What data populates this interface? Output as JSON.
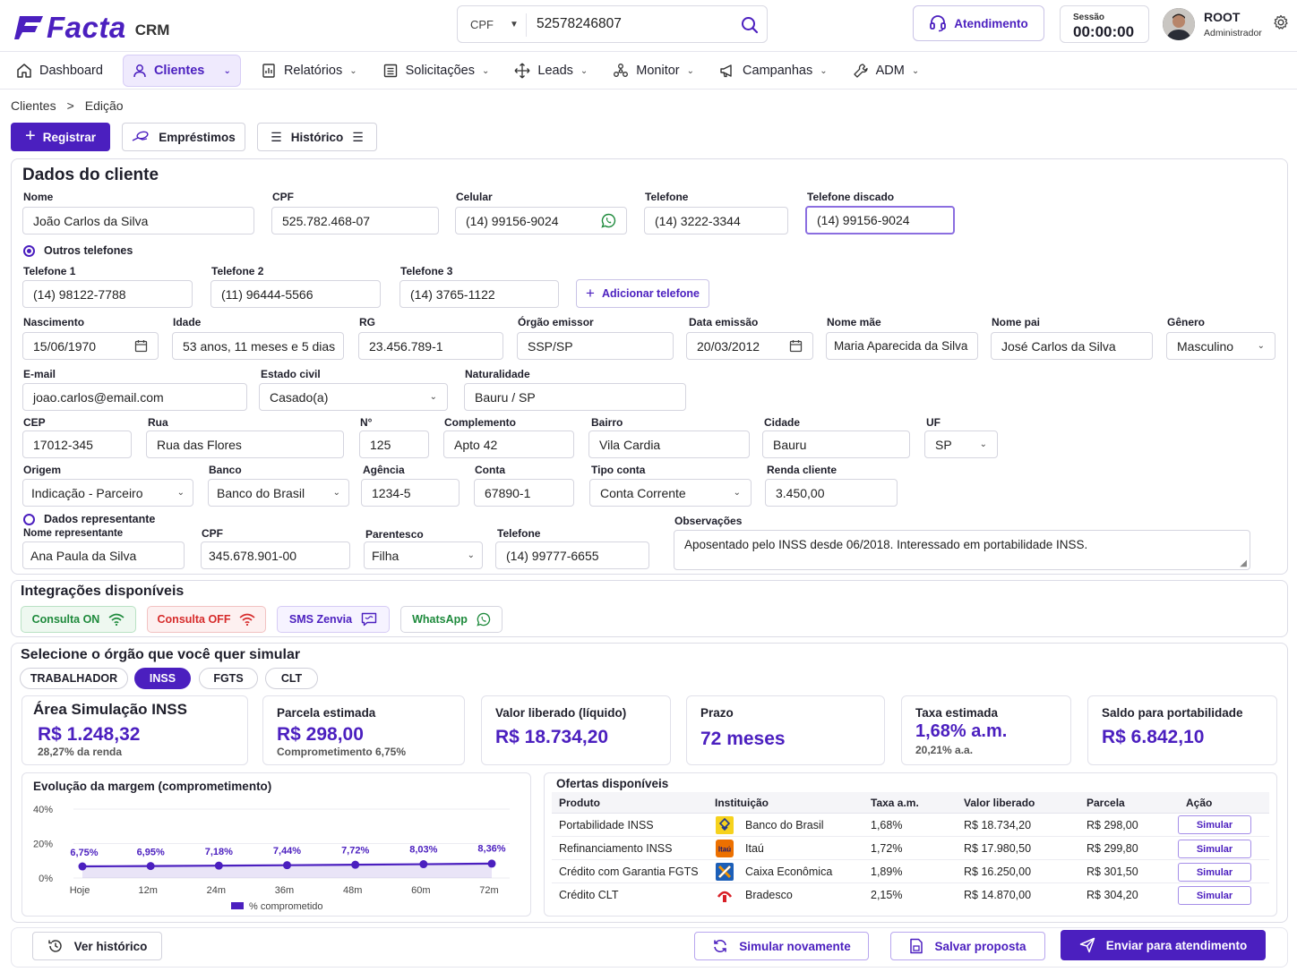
{
  "app": {
    "logo": "Facta",
    "product": "CRM"
  },
  "search": {
    "type": "CPF",
    "value": "52578246807"
  },
  "header": {
    "support_label": "Atendimento",
    "session_label": "Sessão",
    "session_time": "00:00:00",
    "user_name": "ROOT",
    "user_role": "Administrador"
  },
  "nav": [
    {
      "label": "Dashboard"
    },
    {
      "label": "Clientes"
    },
    {
      "label": "Relatórios"
    },
    {
      "label": "Solicitações"
    },
    {
      "label": "Leads"
    },
    {
      "label": "Monitor"
    },
    {
      "label": "Campanhas"
    },
    {
      "label": "ADM"
    }
  ],
  "breadcrumb": {
    "root": "Clientes",
    "sep": ">",
    "current": "Edição"
  },
  "actions": {
    "register": "Registrar",
    "loans": "Empréstimos",
    "history": "Histórico"
  },
  "client": {
    "title": "Dados do cliente",
    "labels": {
      "name": "Nome",
      "cpf": "CPF",
      "cell": "Celular",
      "phone": "Telefone",
      "dialed": "Telefone discado",
      "other_phones": "Outros telefones",
      "phone1": "Telefone 1",
      "phone2": "Telefone 2",
      "phone3": "Telefone 3",
      "add_phone": "Adicionar telefone",
      "birth": "Nascimento",
      "age": "Idade",
      "rg": "RG",
      "issuer": "Órgão emissor",
      "issue_date": "Data emissão",
      "mother": "Nome mãe",
      "father": "Nome pai",
      "gender": "Gênero",
      "email": "E-mail",
      "marital": "Estado civil",
      "birthplace": "Naturalidade",
      "cep": "CEP",
      "street": "Rua",
      "number": "N°",
      "complement": "Complemento",
      "district": "Bairro",
      "city": "Cidade",
      "uf": "UF",
      "origin": "Origem",
      "bank": "Banco",
      "agency": "Agência",
      "account": "Conta",
      "account_type": "Tipo conta",
      "income": "Renda cliente",
      "rep_section": "Dados representante",
      "rep_name": "Nome representante",
      "rep_cpf": "CPF",
      "kinship": "Parentesco",
      "rep_phone": "Telefone",
      "notes": "Observações"
    },
    "values": {
      "name": "João Carlos da Silva",
      "cpf": "525.782.468-07",
      "cell": "(14) 99156-9024",
      "phone": "(14) 3222-3344",
      "dialed": "(14) 99156-9024",
      "phone1": "(14) 98122-7788",
      "phone2": "(11) 96444-5566",
      "phone3": "(14) 3765-1122",
      "birth": "15/06/1970",
      "age": "53 anos, 11 meses e 5 dias",
      "rg": "23.456.789-1",
      "issuer": "SSP/SP",
      "issue_date": "20/03/2012",
      "mother": "Maria Aparecida da Silva",
      "father": "José Carlos da Silva",
      "gender": "Masculino",
      "email": "joao.carlos@email.com",
      "marital": "Casado(a)",
      "birthplace": "Bauru / SP",
      "cep": "17012-345",
      "street": "Rua das Flores",
      "number": "125",
      "complement": "Apto 42",
      "district": "Vila Cardia",
      "city": "Bauru",
      "uf": "SP",
      "origin": "Indicação - Parceiro",
      "bank": "Banco do Brasil",
      "agency": "1234-5",
      "account": "67890-1",
      "account_type": "Conta Corrente",
      "income": "3.450,00",
      "rep_name": "Ana Paula da Silva",
      "rep_cpf": "345.678.901-00",
      "kinship": "Filha",
      "rep_phone": "(14) 99777-6655",
      "notes": "Aposentado pelo INSS desde 06/2018. Interessado em portabilidade INSS."
    }
  },
  "integrations": {
    "title": "Integrações disponíveis",
    "items": [
      {
        "label": "Consulta ON",
        "color": "#1e8a3c"
      },
      {
        "label": "Consulta OFF",
        "color": "#d62b2b"
      },
      {
        "label": "SMS Zenvia",
        "color": "#4b1fbf"
      },
      {
        "label": "WhatsApp",
        "color": "#1e8a3c"
      }
    ]
  },
  "simulation": {
    "title": "Selecione o órgão que você quer simular",
    "tabs": [
      "TRABALHADOR",
      "INSS",
      "FGTS",
      "CLT"
    ],
    "active_tab": "INSS",
    "area_title": "Área Simulação INSS",
    "area_value": "R$ 1.248,32",
    "area_sub": "28,27% da renda",
    "kpis": [
      {
        "title": "Parcela estimada",
        "value": "R$ 298,00",
        "sub": "Comprometimento 6,75%"
      },
      {
        "title": "Valor liberado (líquido)",
        "value": "R$ 18.734,20",
        "sub": ""
      },
      {
        "title": "Prazo",
        "value": "72 meses",
        "sub": ""
      },
      {
        "title": "Taxa estimada",
        "value": "1,68% a.m.",
        "sub": "20,21% a.a."
      },
      {
        "title": "Saldo para portabilidade",
        "value": "R$ 6.842,10",
        "sub": ""
      }
    ]
  },
  "chart_data": {
    "type": "area",
    "title": "Evolução da margem (comprometimento)",
    "categories": [
      "Hoje",
      "12m",
      "24m",
      "36m",
      "48m",
      "60m",
      "72m"
    ],
    "series": [
      {
        "name": "% comprometido",
        "values": [
          6.75,
          6.95,
          7.18,
          7.44,
          7.72,
          8.03,
          8.36
        ],
        "labels": [
          "6,75%",
          "6,95%",
          "7,18%",
          "7,44%",
          "7,72%",
          "8,03%",
          "8,36%"
        ]
      }
    ],
    "y_ticks": [
      "40%",
      "20%",
      "0%"
    ],
    "ylim": [
      0,
      40
    ],
    "color": "#4b1fbf",
    "legend": "bottom-center"
  },
  "offers": {
    "title": "Ofertas disponíveis",
    "columns": [
      "Produto",
      "Instituição",
      "Taxa a.m.",
      "Valor liberado",
      "Parcela",
      "Ação"
    ],
    "rows": [
      {
        "product": "Portabilidade INSS",
        "institution": "Banco do Brasil",
        "icon": "banco-do-brasil-logo",
        "rate": "1,68%",
        "amount": "R$ 18.734,20",
        "installment": "R$ 298,00",
        "action": "Simular"
      },
      {
        "product": "Refinanciamento INSS",
        "institution": "Itaú",
        "icon": "itau-logo",
        "rate": "1,72%",
        "amount": "R$ 17.980,50",
        "installment": "R$ 299,80",
        "action": "Simular"
      },
      {
        "product": "Crédito com Garantia FGTS",
        "institution": "Caixa Econômica",
        "icon": "caixa-logo",
        "rate": "1,89%",
        "amount": "R$ 16.250,00",
        "installment": "R$ 301,50",
        "action": "Simular"
      },
      {
        "product": "Crédito CLT",
        "institution": "Bradesco",
        "icon": "bradesco-logo",
        "rate": "2,15%",
        "amount": "R$ 14.870,00",
        "installment": "R$ 304,20",
        "action": "Simular"
      }
    ]
  },
  "footer": {
    "history": "Ver histórico",
    "simulate_again": "Simular novamente",
    "save": "Salvar proposta",
    "send": "Enviar para atendimento"
  },
  "colors": {
    "primary": "#4b1fbf",
    "border": "#dcdce6",
    "success": "#1e8a3c",
    "danger": "#d62b2b"
  }
}
